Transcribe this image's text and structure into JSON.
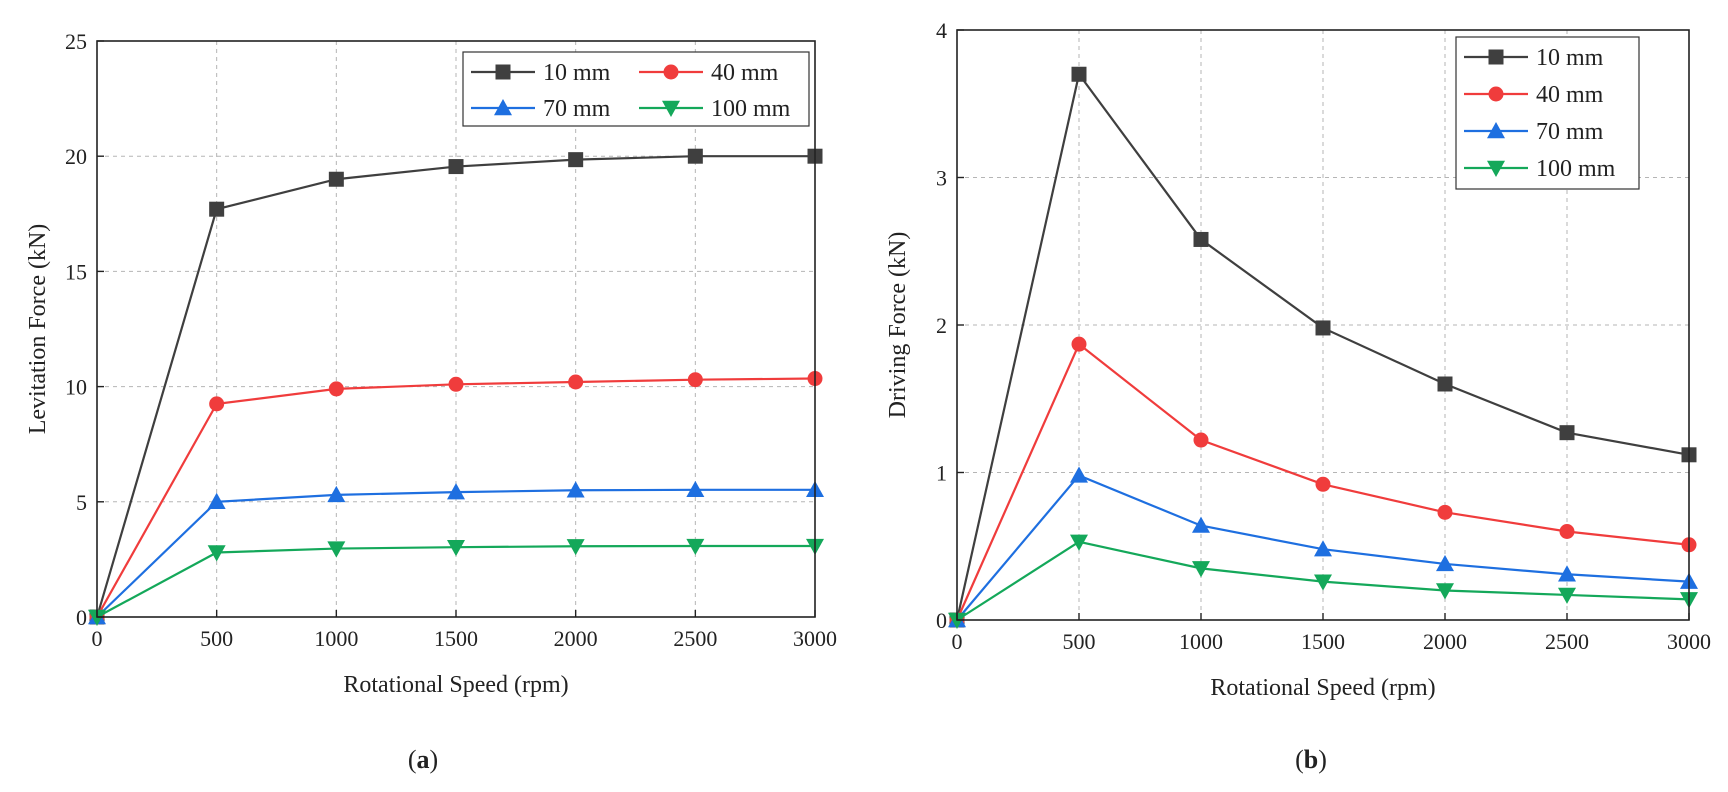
{
  "chart_data": [
    {
      "id": "a",
      "type": "line",
      "panel_label": "a",
      "xlabel": "Rotational Speed (rpm)",
      "ylabel": "Levitation Force (kN)",
      "x": [
        0,
        500,
        1000,
        1500,
        2000,
        2500,
        3000
      ],
      "xlim": [
        0,
        3000
      ],
      "ylim": [
        0,
        25
      ],
      "xticks": [
        0,
        500,
        1000,
        1500,
        2000,
        2500,
        3000
      ],
      "yticks": [
        0,
        5,
        10,
        15,
        20,
        25
      ],
      "grid": true,
      "legend": {
        "position": "top-right",
        "columns": 2
      },
      "series": [
        {
          "name": "10 mm",
          "color": "#3f3f3f",
          "marker": "square",
          "values": [
            0,
            17.7,
            19.0,
            19.55,
            19.85,
            20.0,
            20.0
          ]
        },
        {
          "name": "40 mm",
          "color": "#f03c3c",
          "marker": "circle",
          "values": [
            0,
            9.25,
            9.9,
            10.1,
            10.2,
            10.3,
            10.35
          ]
        },
        {
          "name": "70 mm",
          "color": "#1e6fe0",
          "marker": "triangle-up",
          "values": [
            0,
            5.0,
            5.3,
            5.42,
            5.5,
            5.52,
            5.52
          ]
        },
        {
          "name": "100 mm",
          "color": "#14a85a",
          "marker": "triangle-down",
          "values": [
            0,
            2.8,
            2.97,
            3.03,
            3.07,
            3.08,
            3.08
          ]
        }
      ]
    },
    {
      "id": "b",
      "type": "line",
      "panel_label": "b",
      "xlabel": "Rotational Speed (rpm)",
      "ylabel": "Driving Force (kN)",
      "x": [
        0,
        500,
        1000,
        1500,
        2000,
        2500,
        3000
      ],
      "xlim": [
        0,
        3000
      ],
      "ylim": [
        0,
        4
      ],
      "xticks": [
        0,
        500,
        1000,
        1500,
        2000,
        2500,
        3000
      ],
      "yticks": [
        0,
        1,
        2,
        3,
        4
      ],
      "grid": true,
      "legend": {
        "position": "top-right",
        "columns": 1
      },
      "series": [
        {
          "name": "10 mm",
          "color": "#3f3f3f",
          "marker": "square",
          "values": [
            0,
            3.7,
            2.58,
            1.98,
            1.6,
            1.27,
            1.12
          ]
        },
        {
          "name": "40 mm",
          "color": "#f03c3c",
          "marker": "circle",
          "values": [
            0,
            1.87,
            1.22,
            0.92,
            0.73,
            0.6,
            0.51
          ]
        },
        {
          "name": "70 mm",
          "color": "#1e6fe0",
          "marker": "triangle-up",
          "values": [
            0,
            0.98,
            0.64,
            0.48,
            0.38,
            0.31,
            0.26
          ]
        },
        {
          "name": "100 mm",
          "color": "#14a85a",
          "marker": "triangle-down",
          "values": [
            0,
            0.53,
            0.35,
            0.26,
            0.2,
            0.17,
            0.14
          ]
        }
      ]
    }
  ]
}
